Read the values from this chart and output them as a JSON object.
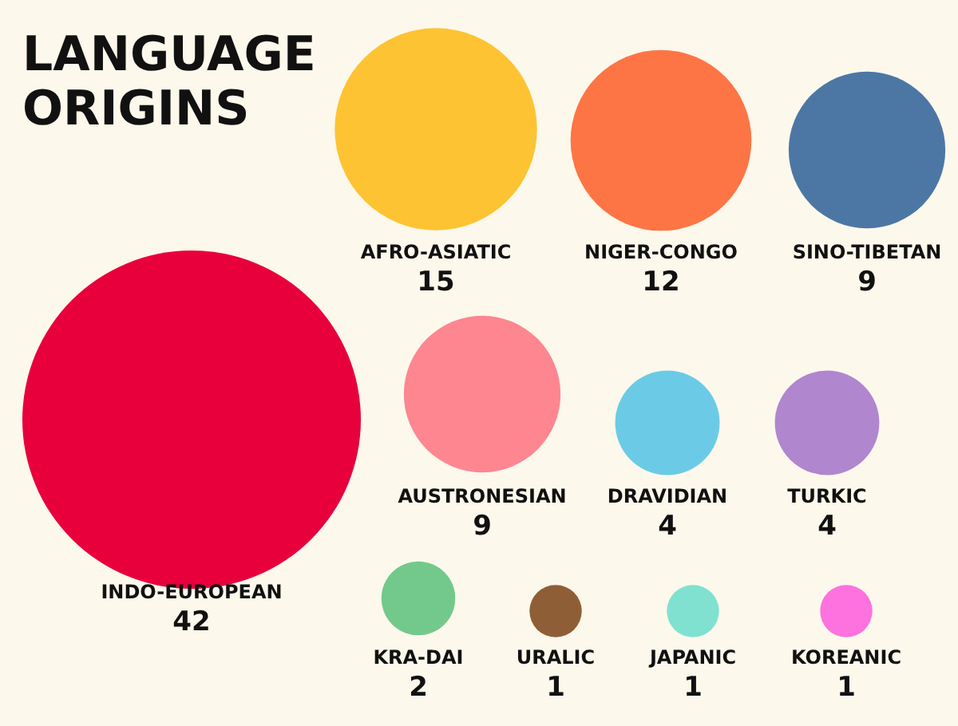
{
  "chart_data": {
    "type": "other",
    "title": "LANGUAGE ORIGINS",
    "categories": [
      "INDO-EUROPEAN",
      "AFRO-ASIATIC",
      "NIGER-CONGO",
      "SINO-TIBETAN",
      "AUSTRONESIAN",
      "DRAVIDIAN",
      "TURKIC",
      "KRA-DAI",
      "URALIC",
      "JAPANIC",
      "KOREANIC"
    ],
    "values": [
      42,
      15,
      12,
      9,
      9,
      4,
      4,
      2,
      1,
      1,
      1
    ],
    "colors": [
      "#e8003d",
      "#fdc332",
      "#fe7545",
      "#4c77a5",
      "#fd8691",
      "#6bcbe6",
      "#b086cf",
      "#73c98b",
      "#8e5f37",
      "#80e1d1",
      "#fd72de"
    ],
    "data_labels": true
  }
}
